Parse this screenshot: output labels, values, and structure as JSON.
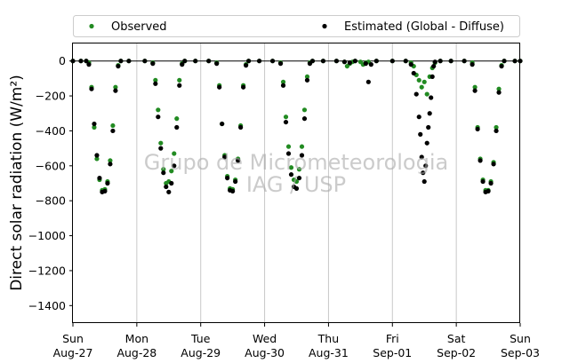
{
  "chart_data": {
    "type": "scatter",
    "title": "",
    "ylabel": "Direct solar radiation (W/m²)",
    "xlabel": "",
    "ylim": [
      -1500,
      100
    ],
    "yticks": [
      0,
      -200,
      -400,
      -600,
      -800,
      -1000,
      -1200,
      -1400
    ],
    "xlim": [
      "2017-08-27",
      "2017-09-03"
    ],
    "xticks": [
      {
        "date": "2017-08-27",
        "day": "Sun",
        "label": "Aug-27"
      },
      {
        "date": "2017-08-28",
        "day": "Mon",
        "label": "Aug-28"
      },
      {
        "date": "2017-08-29",
        "day": "Tue",
        "label": "Aug-29"
      },
      {
        "date": "2017-08-30",
        "day": "Wed",
        "label": "Aug-30"
      },
      {
        "date": "2017-08-31",
        "day": "Thu",
        "label": "Aug-31"
      },
      {
        "date": "2017-09-01",
        "day": "Fri",
        "label": "Sep-01"
      },
      {
        "date": "2017-09-02",
        "day": "Sat",
        "label": "Sep-02"
      },
      {
        "date": "2017-09-03",
        "day": "Sun",
        "label": "Sep-03"
      }
    ],
    "grid": "x",
    "reference_line_y": 0,
    "legend_position": "top",
    "watermark": [
      "Grupo de Micrometeorologia",
      "IAG / USP"
    ],
    "series": [
      {
        "name": "Observed",
        "color": "#228b22",
        "points": [
          [
            "2017-08-27T00:00",
            0
          ],
          [
            "2017-08-27T03:00",
            0
          ],
          [
            "2017-08-27T05:00",
            0
          ],
          [
            "2017-08-27T06:00",
            -10
          ],
          [
            "2017-08-27T07:00",
            -150
          ],
          [
            "2017-08-27T08:00",
            -380
          ],
          [
            "2017-08-27T09:00",
            -560
          ],
          [
            "2017-08-27T10:00",
            -680
          ],
          [
            "2017-08-27T11:00",
            -740
          ],
          [
            "2017-08-27T12:00",
            -735
          ],
          [
            "2017-08-27T13:00",
            -690
          ],
          [
            "2017-08-27T14:00",
            -570
          ],
          [
            "2017-08-27T15:00",
            -370
          ],
          [
            "2017-08-27T16:00",
            -150
          ],
          [
            "2017-08-27T17:00",
            -25
          ],
          [
            "2017-08-27T18:00",
            0
          ],
          [
            "2017-08-27T21:00",
            0
          ],
          [
            "2017-08-28T03:00",
            0
          ],
          [
            "2017-08-28T06:00",
            -10
          ],
          [
            "2017-08-28T07:00",
            -110
          ],
          [
            "2017-08-28T08:00",
            -280
          ],
          [
            "2017-08-28T09:00",
            -470
          ],
          [
            "2017-08-28T10:00",
            -620
          ],
          [
            "2017-08-28T11:00",
            -700
          ],
          [
            "2017-08-28T12:00",
            -690
          ],
          [
            "2017-08-28T13:00",
            -630
          ],
          [
            "2017-08-28T14:00",
            -530
          ],
          [
            "2017-08-28T15:00",
            -330
          ],
          [
            "2017-08-28T16:00",
            -110
          ],
          [
            "2017-08-28T17:00",
            -15
          ],
          [
            "2017-08-28T18:00",
            0
          ],
          [
            "2017-08-28T22:00",
            0
          ],
          [
            "2017-08-29T03:00",
            0
          ],
          [
            "2017-08-29T06:00",
            -10
          ],
          [
            "2017-08-29T07:00",
            -140
          ],
          [
            "2017-08-29T08:00",
            -360
          ],
          [
            "2017-08-29T09:00",
            -540
          ],
          [
            "2017-08-29T10:00",
            -660
          ],
          [
            "2017-08-29T11:00",
            -730
          ],
          [
            "2017-08-29T12:00",
            -735
          ],
          [
            "2017-08-29T13:00",
            -680
          ],
          [
            "2017-08-29T14:00",
            -560
          ],
          [
            "2017-08-29T15:00",
            -370
          ],
          [
            "2017-08-29T16:00",
            -140
          ],
          [
            "2017-08-29T17:00",
            -20
          ],
          [
            "2017-08-29T18:00",
            0
          ],
          [
            "2017-08-29T22:00",
            0
          ],
          [
            "2017-08-30T03:00",
            0
          ],
          [
            "2017-08-30T06:00",
            -10
          ],
          [
            "2017-08-30T07:00",
            -120
          ],
          [
            "2017-08-30T08:00",
            -320
          ],
          [
            "2017-08-30T09:00",
            -490
          ],
          [
            "2017-08-30T10:00",
            -610
          ],
          [
            "2017-08-30T11:00",
            -680
          ],
          [
            "2017-08-30T12:00",
            -690
          ],
          [
            "2017-08-30T13:00",
            -620
          ],
          [
            "2017-08-30T14:00",
            -490
          ],
          [
            "2017-08-30T15:00",
            -280
          ],
          [
            "2017-08-30T16:00",
            -90
          ],
          [
            "2017-08-30T17:00",
            -10
          ],
          [
            "2017-08-30T18:00",
            0
          ],
          [
            "2017-08-30T22:00",
            0
          ],
          [
            "2017-08-31T03:00",
            0
          ],
          [
            "2017-08-31T06:00",
            -5
          ],
          [
            "2017-08-31T07:00",
            -30
          ],
          [
            "2017-08-31T08:00",
            -15
          ],
          [
            "2017-08-31T09:00",
            -5
          ],
          [
            "2017-08-31T10:00",
            0
          ],
          [
            "2017-08-31T12:00",
            -5
          ],
          [
            "2017-08-31T13:00",
            -20
          ],
          [
            "2017-08-31T14:00",
            -10
          ],
          [
            "2017-08-31T15:00",
            -5
          ],
          [
            "2017-08-31T18:00",
            0
          ],
          [
            "2017-09-01T00:00",
            0
          ],
          [
            "2017-09-01T05:00",
            0
          ],
          [
            "2017-09-01T07:00",
            -10
          ],
          [
            "2017-09-01T08:00",
            -30
          ],
          [
            "2017-09-01T09:00",
            -80
          ],
          [
            "2017-09-01T10:00",
            -110
          ],
          [
            "2017-09-01T11:00",
            -150
          ],
          [
            "2017-09-01T12:00",
            -120
          ],
          [
            "2017-09-01T13:00",
            -190
          ],
          [
            "2017-09-01T14:00",
            -90
          ],
          [
            "2017-09-01T15:00",
            -40
          ],
          [
            "2017-09-01T16:00",
            -10
          ],
          [
            "2017-09-01T18:00",
            0
          ],
          [
            "2017-09-01T22:00",
            0
          ],
          [
            "2017-09-02T03:00",
            0
          ],
          [
            "2017-09-02T06:00",
            -10
          ],
          [
            "2017-09-02T07:00",
            -150
          ],
          [
            "2017-09-02T08:00",
            -380
          ],
          [
            "2017-09-02T09:00",
            -560
          ],
          [
            "2017-09-02T10:00",
            -680
          ],
          [
            "2017-09-02T11:00",
            -740
          ],
          [
            "2017-09-02T12:00",
            -740
          ],
          [
            "2017-09-02T13:00",
            -690
          ],
          [
            "2017-09-02T14:00",
            -580
          ],
          [
            "2017-09-02T15:00",
            -380
          ],
          [
            "2017-09-02T16:00",
            -160
          ],
          [
            "2017-09-02T17:00",
            -25
          ],
          [
            "2017-09-02T18:00",
            0
          ],
          [
            "2017-09-02T22:00",
            0
          ],
          [
            "2017-09-03T00:00",
            0
          ]
        ]
      },
      {
        "name": "Estimated (Global - Diffuse)",
        "color": "#000000",
        "points": [
          [
            "2017-08-27T00:00",
            0
          ],
          [
            "2017-08-27T03:00",
            0
          ],
          [
            "2017-08-27T05:00",
            0
          ],
          [
            "2017-08-27T06:00",
            -20
          ],
          [
            "2017-08-27T07:00",
            -160
          ],
          [
            "2017-08-27T08:00",
            -360
          ],
          [
            "2017-08-27T09:00",
            -540
          ],
          [
            "2017-08-27T10:00",
            -670
          ],
          [
            "2017-08-27T11:00",
            -750
          ],
          [
            "2017-08-27T12:00",
            -745
          ],
          [
            "2017-08-27T13:00",
            -700
          ],
          [
            "2017-08-27T14:00",
            -590
          ],
          [
            "2017-08-27T15:00",
            -400
          ],
          [
            "2017-08-27T16:00",
            -170
          ],
          [
            "2017-08-27T17:00",
            -30
          ],
          [
            "2017-08-27T18:00",
            0
          ],
          [
            "2017-08-27T21:00",
            0
          ],
          [
            "2017-08-28T03:00",
            0
          ],
          [
            "2017-08-28T06:00",
            -15
          ],
          [
            "2017-08-28T07:00",
            -130
          ],
          [
            "2017-08-28T08:00",
            -320
          ],
          [
            "2017-08-28T09:00",
            -500
          ],
          [
            "2017-08-28T10:00",
            -640
          ],
          [
            "2017-08-28T11:00",
            -720
          ],
          [
            "2017-08-28T12:00",
            -750
          ],
          [
            "2017-08-28T13:00",
            -700
          ],
          [
            "2017-08-28T14:00",
            -600
          ],
          [
            "2017-08-28T15:00",
            -380
          ],
          [
            "2017-08-28T16:00",
            -140
          ],
          [
            "2017-08-28T17:00",
            -20
          ],
          [
            "2017-08-28T18:00",
            0
          ],
          [
            "2017-08-28T22:00",
            0
          ],
          [
            "2017-08-29T03:00",
            0
          ],
          [
            "2017-08-29T06:00",
            -15
          ],
          [
            "2017-08-29T07:00",
            -150
          ],
          [
            "2017-08-29T08:00",
            -360
          ],
          [
            "2017-08-29T09:00",
            -550
          ],
          [
            "2017-08-29T10:00",
            -670
          ],
          [
            "2017-08-29T11:00",
            -740
          ],
          [
            "2017-08-29T12:00",
            -745
          ],
          [
            "2017-08-29T13:00",
            -690
          ],
          [
            "2017-08-29T14:00",
            -570
          ],
          [
            "2017-08-29T15:00",
            -380
          ],
          [
            "2017-08-29T16:00",
            -150
          ],
          [
            "2017-08-29T17:00",
            -25
          ],
          [
            "2017-08-29T18:00",
            0
          ],
          [
            "2017-08-29T22:00",
            0
          ],
          [
            "2017-08-30T03:00",
            0
          ],
          [
            "2017-08-30T06:00",
            -15
          ],
          [
            "2017-08-30T07:00",
            -140
          ],
          [
            "2017-08-30T08:00",
            -350
          ],
          [
            "2017-08-30T09:00",
            -530
          ],
          [
            "2017-08-30T10:00",
            -650
          ],
          [
            "2017-08-30T11:00",
            -720
          ],
          [
            "2017-08-30T12:00",
            -730
          ],
          [
            "2017-08-30T13:00",
            -670
          ],
          [
            "2017-08-30T14:00",
            -540
          ],
          [
            "2017-08-30T15:00",
            -330
          ],
          [
            "2017-08-30T16:00",
            -110
          ],
          [
            "2017-08-30T17:00",
            -15
          ],
          [
            "2017-08-30T18:00",
            0
          ],
          [
            "2017-08-30T22:00",
            0
          ],
          [
            "2017-08-31T03:00",
            0
          ],
          [
            "2017-08-31T06:00",
            -5
          ],
          [
            "2017-08-31T08:00",
            -10
          ],
          [
            "2017-08-31T10:00",
            0
          ],
          [
            "2017-08-31T14:00",
            -15
          ],
          [
            "2017-08-31T15:00",
            -120
          ],
          [
            "2017-08-31T16:00",
            -20
          ],
          [
            "2017-08-31T18:00",
            0
          ],
          [
            "2017-09-01T00:00",
            0
          ],
          [
            "2017-09-01T05:00",
            0
          ],
          [
            "2017-09-01T07:00",
            -20
          ],
          [
            "2017-09-01T08:00",
            -70
          ],
          [
            "2017-09-01T09:00",
            -190
          ],
          [
            "2017-09-01T10:00",
            -320
          ],
          [
            "2017-09-01T10:30",
            -420
          ],
          [
            "2017-09-01T11:00",
            -550
          ],
          [
            "2017-09-01T11:30",
            -640
          ],
          [
            "2017-09-01T12:00",
            -690
          ],
          [
            "2017-09-01T12:30",
            -600
          ],
          [
            "2017-09-01T13:00",
            -470
          ],
          [
            "2017-09-01T13:30",
            -380
          ],
          [
            "2017-09-01T14:00",
            -300
          ],
          [
            "2017-09-01T14:30",
            -210
          ],
          [
            "2017-09-01T15:00",
            -90
          ],
          [
            "2017-09-01T15:30",
            -30
          ],
          [
            "2017-09-01T16:00",
            -5
          ],
          [
            "2017-09-01T18:00",
            0
          ],
          [
            "2017-09-01T22:00",
            0
          ],
          [
            "2017-09-02T03:00",
            0
          ],
          [
            "2017-09-02T06:00",
            -20
          ],
          [
            "2017-09-02T07:00",
            -170
          ],
          [
            "2017-09-02T08:00",
            -390
          ],
          [
            "2017-09-02T09:00",
            -570
          ],
          [
            "2017-09-02T10:00",
            -690
          ],
          [
            "2017-09-02T11:00",
            -750
          ],
          [
            "2017-09-02T12:00",
            -745
          ],
          [
            "2017-09-02T13:00",
            -700
          ],
          [
            "2017-09-02T14:00",
            -590
          ],
          [
            "2017-09-02T15:00",
            -400
          ],
          [
            "2017-09-02T16:00",
            -180
          ],
          [
            "2017-09-02T17:00",
            -30
          ],
          [
            "2017-09-02T18:00",
            0
          ],
          [
            "2017-09-02T22:00",
            0
          ],
          [
            "2017-09-03T00:00",
            0
          ]
        ]
      }
    ]
  }
}
